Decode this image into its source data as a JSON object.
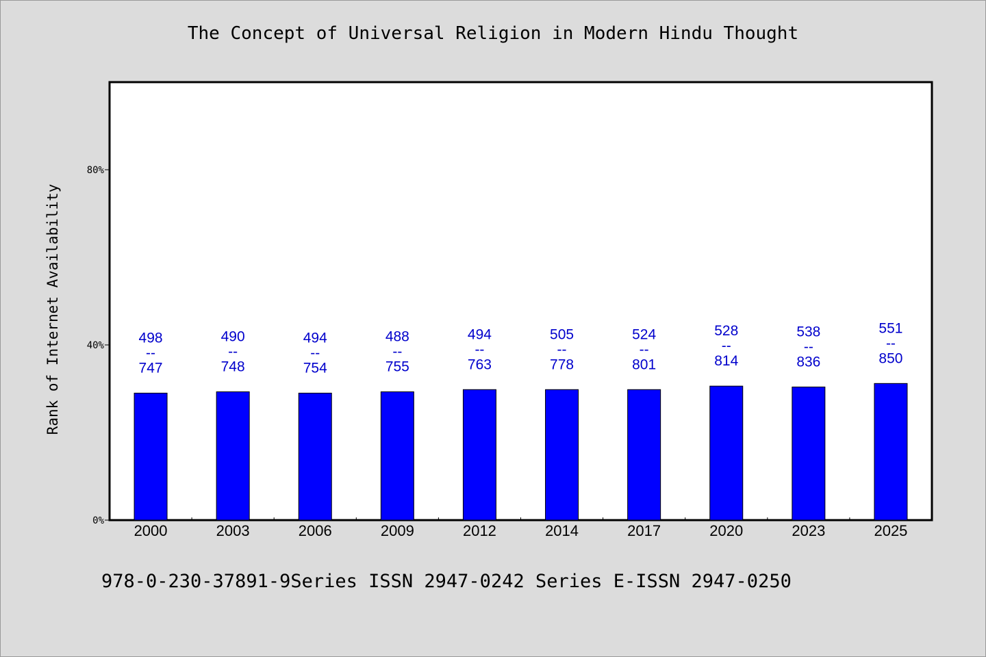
{
  "page": {
    "title": "The Concept of Universal Religion in Modern Hindu Thought",
    "footer": "978-0-230-37891-9Series ISSN 2947-0242 Series E-ISSN 2947-0250"
  },
  "colors": {
    "background": "#dcdcdc",
    "plot_area": "#ffffff",
    "bar": "#0000ff",
    "data_label": "#0000cc"
  },
  "chart_data": {
    "type": "bar",
    "title": "The Concept of Universal Religion in Modern Hindu Thought",
    "xlabel": "",
    "ylabel": "Rank of Internet Availability",
    "ylim": [
      0,
      100
    ],
    "yticks": [
      0,
      40,
      80
    ],
    "ytick_labels": [
      "0%",
      "40%",
      "80%"
    ],
    "grid": false,
    "categories": [
      "2000",
      "2003",
      "2006",
      "2009",
      "2012",
      "2014",
      "2017",
      "2020",
      "2023",
      "2025"
    ],
    "values": [
      29.0,
      29.3,
      29.0,
      29.3,
      29.8,
      29.8,
      29.8,
      30.6,
      30.4,
      31.2
    ],
    "annotations": [
      {
        "top": "498",
        "sep": "--",
        "bottom": "747"
      },
      {
        "top": "490",
        "sep": "--",
        "bottom": "748"
      },
      {
        "top": "494",
        "sep": "--",
        "bottom": "754"
      },
      {
        "top": "488",
        "sep": "--",
        "bottom": "755"
      },
      {
        "top": "494",
        "sep": "--",
        "bottom": "763"
      },
      {
        "top": "505",
        "sep": "--",
        "bottom": "778"
      },
      {
        "top": "524",
        "sep": "--",
        "bottom": "801"
      },
      {
        "top": "528",
        "sep": "--",
        "bottom": "814"
      },
      {
        "top": "538",
        "sep": "--",
        "bottom": "836"
      },
      {
        "top": "551",
        "sep": "--",
        "bottom": "850"
      }
    ]
  }
}
